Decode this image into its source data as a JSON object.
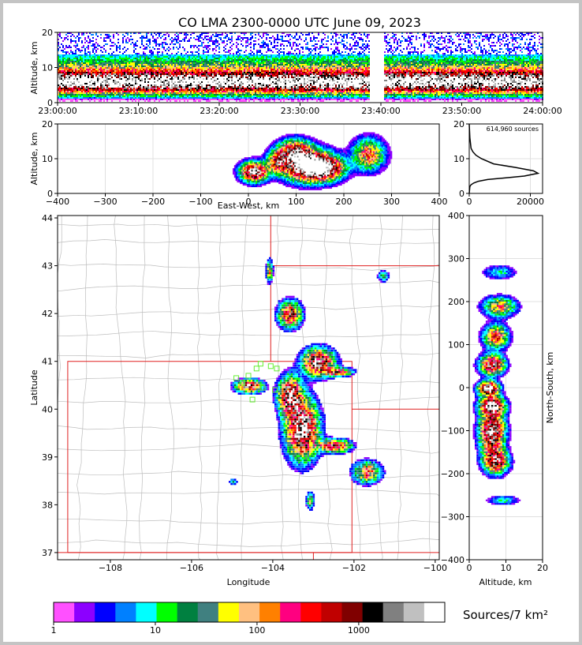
{
  "title": "CO LMA 2300-0000 UTC June 09, 2023",
  "colorbar": {
    "label": "Sources/7 km²",
    "ticks": [
      "1",
      "10",
      "100",
      "1000"
    ],
    "colors": [
      "#ff50ff",
      "#8c00ff",
      "#0000ff",
      "#0080ff",
      "#00ffff",
      "#00ff00",
      "#008040",
      "#408080",
      "#ffff00",
      "#ffc080",
      "#ff8000",
      "#ff0080",
      "#ff0000",
      "#c00000",
      "#800000",
      "#000000",
      "#808080",
      "#c0c0c0",
      "#ffffff"
    ]
  },
  "chart_data": [
    {
      "id": "time-altitude",
      "type": "heatmap",
      "ylabel": "Altitude, km",
      "xlabel": "",
      "x_ticks": [
        "23:00:00",
        "23:10:00",
        "23:20:00",
        "23:30:00",
        "23:40:00",
        "23:50:00",
        "24:00:00"
      ],
      "y_ticks": [
        "0",
        "10",
        "20"
      ],
      "xlim_minutes": [
        0,
        60
      ],
      "ylim": [
        0,
        20
      ],
      "gap_minutes": [
        38.5,
        40.3
      ]
    },
    {
      "id": "ew-altitude",
      "type": "heatmap",
      "xlabel": "East-West, km",
      "ylabel": "Altitude, km",
      "x_ticks": [
        "−400",
        "−300",
        "−200",
        "−100",
        "0",
        "100",
        "200",
        "300",
        "400"
      ],
      "y_ticks": [
        "0",
        "10",
        "20"
      ],
      "xlim": [
        -400,
        400
      ],
      "ylim": [
        0,
        20
      ]
    },
    {
      "id": "altitude-histogram",
      "type": "line",
      "annotation": "614,960 sources",
      "x_ticks": [
        "0",
        "20000"
      ],
      "y_ticks": [
        "0",
        "10",
        "20"
      ],
      "xlim": [
        0,
        24000
      ],
      "ylim": [
        0,
        20
      ],
      "series": [
        {
          "x": [
            0,
            200,
            600,
            1500,
            3000,
            6000,
            12000,
            18000,
            22500,
            21000,
            15000,
            8000,
            4000,
            2200,
            1200,
            600,
            200,
            0
          ],
          "y": [
            0,
            2,
            2.5,
            3,
            3.5,
            4,
            4.5,
            5,
            5.8,
            6.5,
            7.5,
            8.5,
            10,
            11,
            12,
            13,
            16,
            20
          ]
        }
      ]
    },
    {
      "id": "plan-view",
      "type": "heatmap",
      "xlabel": "Longitude",
      "ylabel": "Latitude",
      "x_ticks": [
        "−108",
        "−106",
        "−104",
        "−102",
        "−100"
      ],
      "y_ticks": [
        "37",
        "38",
        "39",
        "40",
        "41",
        "42",
        "43",
        "44"
      ],
      "xlim": [
        -109.3,
        -99.9
      ],
      "ylim": [
        36.85,
        44.05
      ]
    },
    {
      "id": "ns-altitude",
      "type": "heatmap",
      "xlabel": "Altitude, km",
      "ylabel": "North-South, km",
      "x_ticks": [
        "0",
        "10",
        "20"
      ],
      "y_ticks": [
        "400",
        "300",
        "200",
        "100",
        "0",
        "−100",
        "−200",
        "−300",
        "−400"
      ],
      "xlim": [
        0,
        20
      ],
      "ylim": [
        -400,
        400
      ]
    }
  ]
}
